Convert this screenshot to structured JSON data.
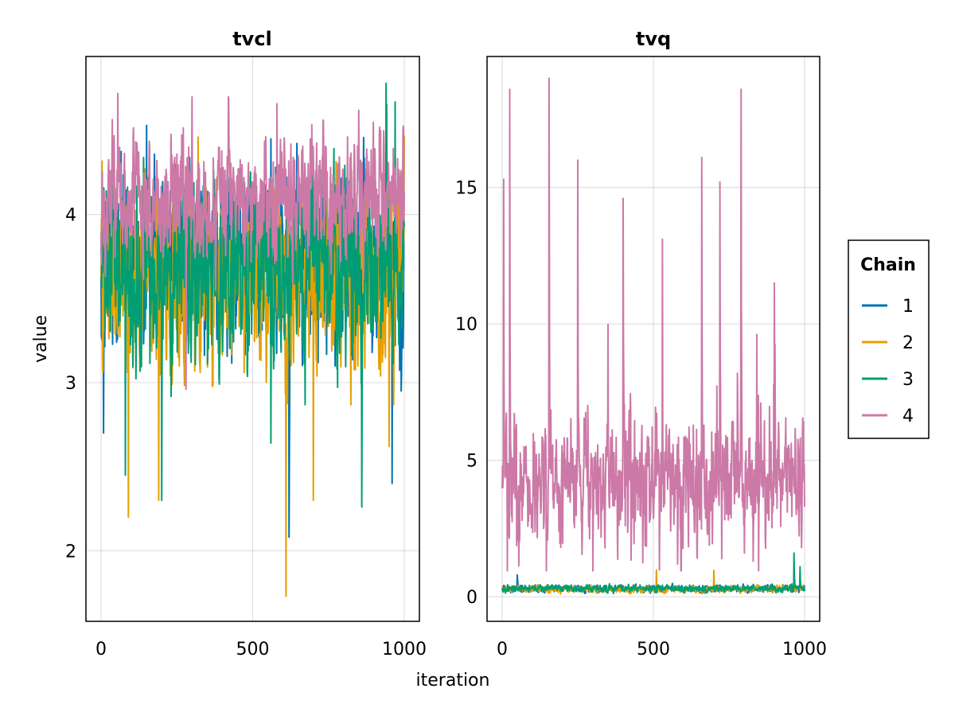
{
  "chart_data": [
    {
      "type": "line",
      "title": "tvcl",
      "xlabel": "iteration",
      "ylabel": "value",
      "xlim": [
        -50,
        1050
      ],
      "ylim": [
        1.58,
        4.94
      ],
      "xticks": [
        0,
        500,
        1000
      ],
      "xtick_labels": [
        "0",
        "500",
        "1000"
      ],
      "yticks": [
        2,
        3,
        4
      ],
      "ytick_labels": [
        "2",
        "3",
        "4"
      ],
      "grid": true,
      "n_iterations": 1000,
      "series": [
        {
          "name": "1",
          "color": "#0072b2",
          "center": 3.75,
          "spread": 0.42,
          "min": 2.08,
          "max": 4.53,
          "spikes": [
            [
              8,
              2.7
            ],
            [
              620,
              2.08
            ],
            [
              960,
              2.4
            ],
            [
              150,
              4.53
            ],
            [
              560,
              4.45
            ],
            [
              990,
              2.95
            ]
          ]
        },
        {
          "name": "2",
          "color": "#e69f00",
          "center": 3.62,
          "spread": 0.45,
          "min": 1.73,
          "max": 4.47,
          "spikes": [
            [
              90,
              2.2
            ],
            [
              190,
              2.3
            ],
            [
              610,
              1.73
            ],
            [
              700,
              2.3
            ],
            [
              950,
              2.62
            ],
            [
              320,
              4.46
            ],
            [
              1000,
              4.47
            ]
          ]
        },
        {
          "name": "3",
          "color": "#009e73",
          "center": 3.68,
          "spread": 0.42,
          "min": 2.26,
          "max": 4.78,
          "spikes": [
            [
              80,
              2.45
            ],
            [
              200,
              2.3
            ],
            [
              860,
              2.26
            ],
            [
              940,
              4.78
            ],
            [
              970,
              4.67
            ],
            [
              560,
              2.64
            ]
          ]
        },
        {
          "name": "4",
          "color": "#cc79a7",
          "center": 4.08,
          "spread": 0.28,
          "min": 2.96,
          "max": 4.73,
          "spikes": [
            [
              55,
              4.72
            ],
            [
              300,
              4.7
            ],
            [
              420,
              4.7
            ],
            [
              580,
              4.66
            ],
            [
              850,
              4.62
            ],
            [
              280,
              2.96
            ]
          ]
        }
      ]
    },
    {
      "type": "line",
      "title": "tvq",
      "xlabel": "iteration",
      "ylabel": "",
      "xlim": [
        -50,
        1050
      ],
      "ylim": [
        -0.9,
        19.8
      ],
      "xticks": [
        0,
        500,
        1000
      ],
      "xtick_labels": [
        "0",
        "500",
        "1000"
      ],
      "yticks": [
        0,
        5,
        10,
        15
      ],
      "ytick_labels": [
        "0",
        "5",
        "10",
        "15"
      ],
      "grid": true,
      "n_iterations": 1000,
      "series": [
        {
          "name": "1",
          "color": "#0072b2",
          "center": 0.3,
          "spread": 0.1,
          "min": 0.12,
          "max": 0.85,
          "spikes": [
            [
              50,
              0.8
            ]
          ]
        },
        {
          "name": "2",
          "color": "#e69f00",
          "center": 0.28,
          "spread": 0.1,
          "min": 0.1,
          "max": 1.0,
          "spikes": [
            [
              510,
              0.98
            ],
            [
              700,
              0.97
            ]
          ]
        },
        {
          "name": "3",
          "color": "#009e73",
          "center": 0.3,
          "spread": 0.1,
          "min": 0.1,
          "max": 1.6,
          "spikes": [
            [
              965,
              1.6
            ],
            [
              985,
              1.1
            ]
          ]
        },
        {
          "name": "4",
          "color": "#cc79a7",
          "center": 4.3,
          "spread": 1.6,
          "min": 0.95,
          "max": 19.0,
          "spikes": [
            [
              5,
              15.3
            ],
            [
              25,
              18.6
            ],
            [
              155,
              19.0
            ],
            [
              250,
              16.0
            ],
            [
              400,
              14.6
            ],
            [
              530,
              13.1
            ],
            [
              660,
              16.1
            ],
            [
              790,
              18.6
            ],
            [
              720,
              15.2
            ],
            [
              900,
              11.5
            ],
            [
              300,
              0.95
            ],
            [
              520,
              0.98
            ],
            [
              580,
              1.2
            ],
            [
              990,
              1.8
            ],
            [
              830,
              1.3
            ]
          ]
        }
      ]
    }
  ],
  "legend": {
    "title": "Chain",
    "items": [
      {
        "label": "1",
        "color": "#0072b2"
      },
      {
        "label": "2",
        "color": "#e69f00"
      },
      {
        "label": "3",
        "color": "#009e73"
      },
      {
        "label": "4",
        "color": "#cc79a7"
      }
    ]
  }
}
